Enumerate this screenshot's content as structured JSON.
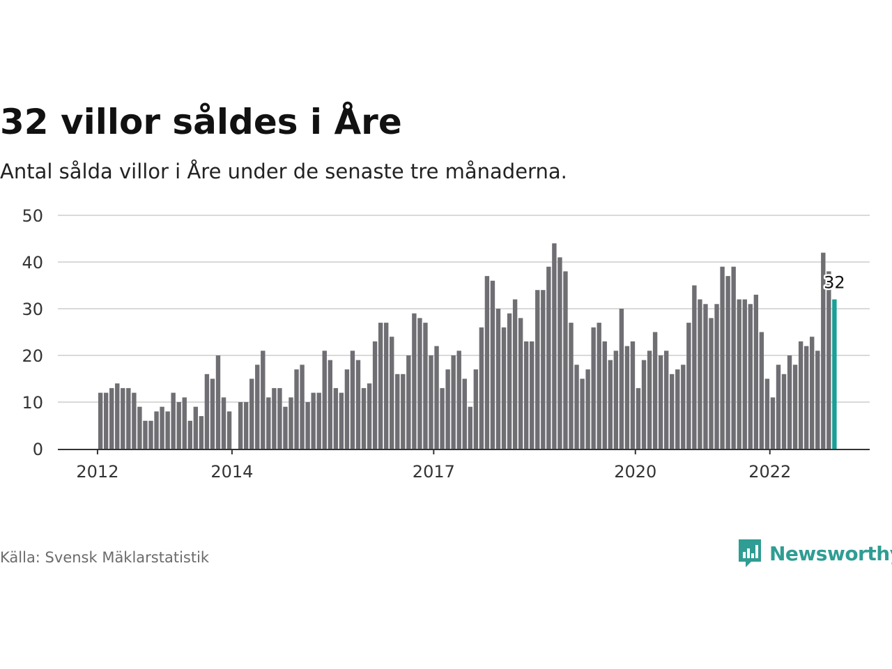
{
  "header": {
    "title": "32 villor såldes i Åre",
    "subtitle": "Antal sålda villor i Åre under de senaste tre månaderna."
  },
  "footer": {
    "source": "Källa: Svensk Mäklarstatistik",
    "brand": "Newsworthy",
    "brand_icon": "bar-chart-speech-bubble-icon"
  },
  "colors": {
    "bar": "#6f6e73",
    "highlight": "#1a9e96",
    "grid": "#d9d9d9",
    "axis": "#333333",
    "brand": "#2f9d93"
  },
  "chart_data": {
    "type": "bar",
    "title": "32 villor såldes i Åre",
    "subtitle": "Antal sålda villor i Åre under de senaste tre månaderna.",
    "xlabel": "",
    "ylabel": "",
    "ylim": [
      0,
      50
    ],
    "yticks": [
      0,
      10,
      20,
      30,
      40,
      50
    ],
    "x_start": "2011-12",
    "x_end": "2023-04",
    "xticks": [
      {
        "label": "2012",
        "date": "2012-01"
      },
      {
        "label": "2014",
        "date": "2014-01"
      },
      {
        "label": "2017",
        "date": "2017-01"
      },
      {
        "label": "2020",
        "date": "2020-01"
      },
      {
        "label": "2022",
        "date": "2022-01"
      }
    ],
    "grid": true,
    "legend": "none",
    "highlight_index": 131,
    "highlight_label": "32",
    "series": [
      {
        "start": "2012-01",
        "values": [
          12,
          12,
          13,
          14,
          13,
          13,
          12,
          9,
          6,
          6,
          8,
          9,
          8,
          12,
          10,
          11,
          6,
          9,
          7,
          16,
          15,
          20,
          11,
          8,
          null,
          10,
          10,
          15,
          18,
          21,
          11,
          13,
          13,
          9,
          11,
          17,
          18,
          10,
          12,
          12,
          21,
          19,
          13,
          12,
          17,
          21,
          19,
          13,
          14,
          23,
          27,
          27,
          24,
          16,
          16,
          20,
          29,
          28,
          27,
          20,
          22,
          13,
          17,
          20,
          21,
          15,
          9,
          17,
          26,
          37,
          36,
          30,
          26,
          29,
          32,
          28,
          23,
          23,
          34,
          34,
          39,
          44,
          41,
          38,
          27,
          18,
          15,
          17,
          26,
          27,
          23,
          19,
          21,
          30,
          22,
          23,
          13,
          19,
          21,
          25,
          20,
          21,
          16,
          17,
          18,
          27,
          35,
          32,
          31,
          28,
          31,
          39,
          37,
          39,
          32,
          32,
          31,
          33,
          25,
          15,
          11,
          18,
          16,
          20,
          18,
          23,
          22,
          24,
          21,
          42,
          38,
          32
        ]
      }
    ]
  }
}
